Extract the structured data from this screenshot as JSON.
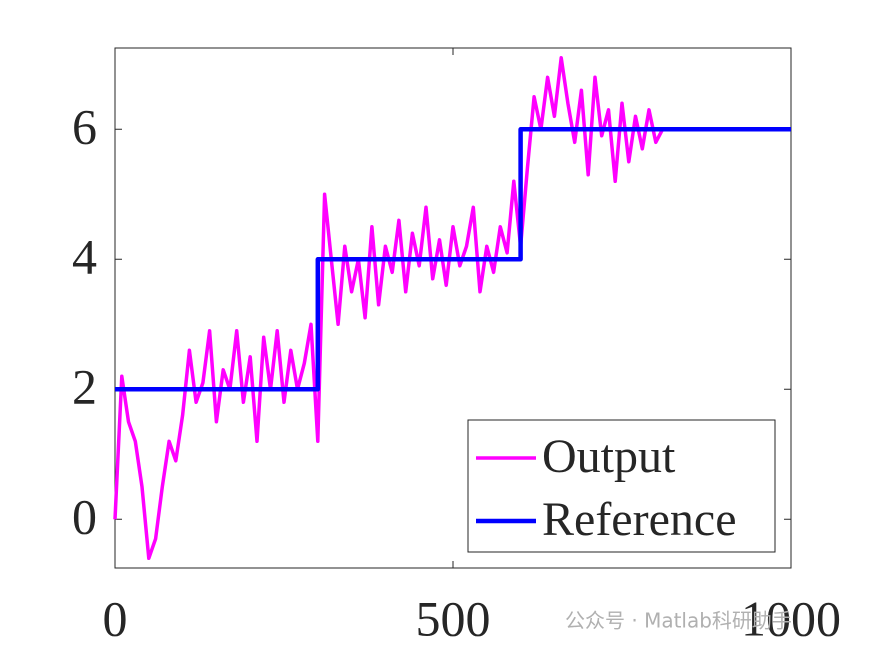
{
  "chart_data": {
    "type": "line",
    "xlim": [
      0,
      1000
    ],
    "xticks": [
      0,
      500,
      1000
    ],
    "ylim": [
      -0.75,
      7.25
    ],
    "yticks": [
      0,
      2,
      4,
      6
    ],
    "legend": "lower right",
    "watermark": "公众号 · Matlab科研助手",
    "series": [
      {
        "name": "Output",
        "color": "#ff00ff",
        "x": [
          0,
          10,
          20,
          30,
          40,
          50,
          60,
          70,
          80,
          90,
          100,
          110,
          120,
          130,
          140,
          150,
          160,
          170,
          180,
          190,
          200,
          210,
          220,
          230,
          240,
          250,
          260,
          270,
          280,
          290,
          300,
          310,
          320,
          330,
          340,
          350,
          360,
          370,
          380,
          390,
          400,
          410,
          420,
          430,
          440,
          450,
          460,
          470,
          480,
          490,
          500,
          510,
          520,
          530,
          540,
          550,
          560,
          570,
          580,
          590,
          600,
          610,
          620,
          630,
          640,
          650,
          660,
          670,
          680,
          690,
          700,
          710,
          720,
          730,
          740,
          750,
          760,
          770,
          780,
          790,
          800,
          810
        ],
        "values": [
          0,
          2.2,
          1.5,
          1.2,
          0.5,
          -0.6,
          -0.3,
          0.5,
          1.2,
          0.9,
          1.6,
          2.6,
          1.8,
          2.1,
          2.9,
          1.5,
          2.3,
          2.0,
          2.9,
          1.8,
          2.5,
          1.2,
          2.8,
          2.0,
          2.9,
          1.8,
          2.6,
          2.0,
          2.4,
          3.0,
          1.2,
          5.0,
          4.0,
          3.0,
          4.2,
          3.5,
          4.0,
          3.1,
          4.5,
          3.3,
          4.2,
          3.8,
          4.6,
          3.5,
          4.4,
          3.9,
          4.8,
          3.7,
          4.3,
          3.6,
          4.5,
          3.9,
          4.2,
          4.8,
          3.5,
          4.2,
          3.8,
          4.5,
          4.1,
          5.2,
          4.2,
          5.4,
          6.5,
          6.0,
          6.8,
          6.2,
          7.1,
          6.4,
          5.8,
          6.6,
          5.3,
          6.8,
          5.9,
          6.3,
          5.2,
          6.4,
          5.5,
          6.2,
          5.7,
          6.3,
          5.8,
          6.0
        ]
      },
      {
        "name": "Reference",
        "color": "#0000ff",
        "x": [
          0,
          300,
          300,
          600,
          600,
          1000
        ],
        "values": [
          2,
          2,
          4,
          4,
          6,
          6
        ]
      }
    ]
  }
}
